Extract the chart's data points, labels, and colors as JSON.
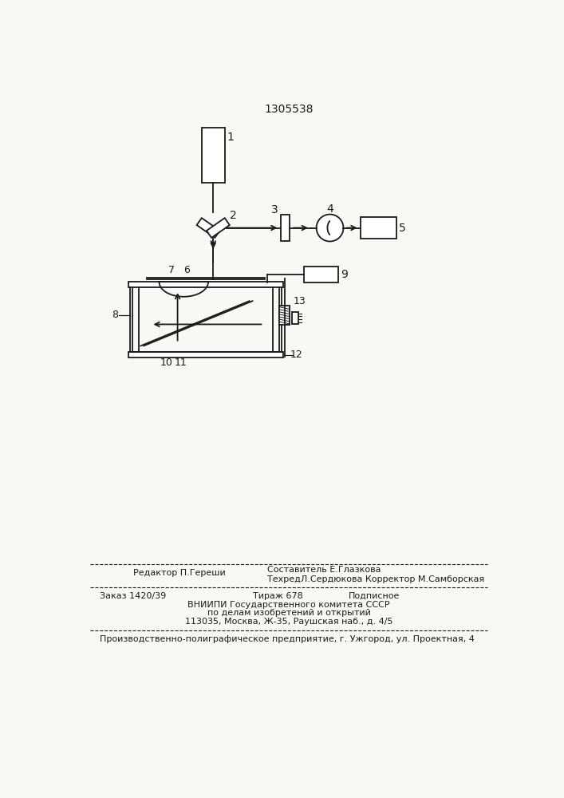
{
  "title": "1305538",
  "bg_color": "#f8f8f4",
  "line_color": "#1a1a1a",
  "label_color": "#1a1a1a",
  "footer_line1_left": "Редактор П.Гереши",
  "footer_line1_right": "Составитель Е.Глазкова",
  "footer_line2_right": "ТехредЛ.Сердюкова Корректор М.Самборская",
  "footer2_left": "Заказ 1420/39",
  "footer2_center": "Тираж 678",
  "footer2_right": "Подписное",
  "footer3": "ВНИИПИ Государственного комитета СССР",
  "footer4": "по делам изобретений и открытий",
  "footer5": "113035, Москва, Ж-35, Раушская наб., д. 4/5",
  "footer6": "Производственно-полиграфическое предприятие, г. Ужгород, ул. Проектная, 4"
}
